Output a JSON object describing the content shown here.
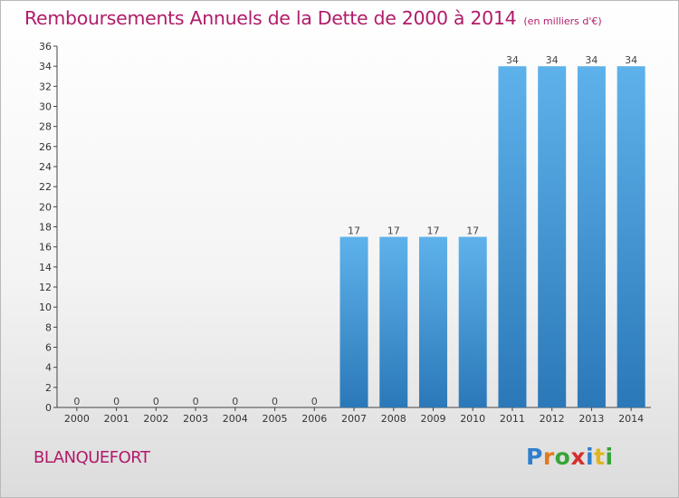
{
  "header": {
    "title": "Remboursements Annuels de la Dette de 2000 à 2014",
    "unit": "(en milliers d'€)"
  },
  "footer": {
    "city": "BLANQUEFORT",
    "logo_letters": [
      {
        "char": "P",
        "color": "#2f7fce"
      },
      {
        "char": "r",
        "color": "#e37b1d"
      },
      {
        "char": "o",
        "color": "#37a437"
      },
      {
        "char": "x",
        "color": "#d62e2e"
      },
      {
        "char": "i",
        "color": "#2f7fce"
      },
      {
        "char": "t",
        "color": "#e3b51d"
      },
      {
        "char": "i",
        "color": "#37a437"
      }
    ]
  },
  "colors": {
    "title": "#b01c6a",
    "bar_light": "#5eb2eb",
    "bar_dark": "#2b78b8"
  },
  "chart_data": {
    "type": "bar",
    "categories": [
      "2000",
      "2001",
      "2002",
      "2003",
      "2004",
      "2005",
      "2006",
      "2007",
      "2008",
      "2009",
      "2010",
      "2011",
      "2012",
      "2013",
      "2014"
    ],
    "values": [
      0,
      0,
      0,
      0,
      0,
      0,
      0,
      17,
      17,
      17,
      17,
      34,
      34,
      34,
      34
    ],
    "ylim": [
      0,
      36
    ],
    "yticks": [
      0,
      2,
      4,
      6,
      8,
      10,
      12,
      14,
      16,
      18,
      20,
      22,
      24,
      26,
      28,
      30,
      32,
      34,
      36
    ],
    "grid": false,
    "legend": "none"
  }
}
